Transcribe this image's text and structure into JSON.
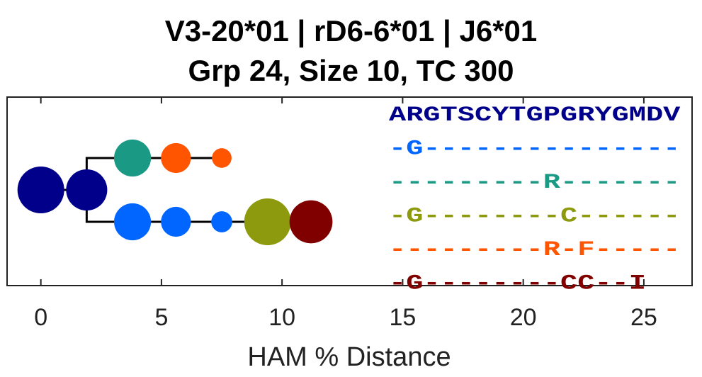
{
  "chart_data": {
    "type": "scatter",
    "title": "V3-20*01 | rD6-6*01 | J6*01",
    "subtitle": "Grp 24, Size 10, TC 300",
    "xlabel": "HAM % Distance",
    "xlim": [
      -1.4,
      27.0
    ],
    "xticks": [
      0,
      5,
      10,
      15,
      20,
      25
    ],
    "xtick_labels": [
      "0",
      "5",
      "10",
      "15",
      "20",
      "25"
    ],
    "grid": false,
    "nodes": [
      {
        "x": 0.0,
        "row": 0,
        "size": 1.0,
        "color": "#00008B"
      },
      {
        "x": 1.9,
        "row": 0,
        "size": 0.88,
        "color": "#00008B"
      },
      {
        "x": 3.8,
        "row": -1,
        "size": 0.79,
        "color": "#1A9985"
      },
      {
        "x": 5.6,
        "row": -1,
        "size": 0.64,
        "color": "#FF5500"
      },
      {
        "x": 7.5,
        "row": -1,
        "size": 0.42,
        "color": "#FF5500"
      },
      {
        "x": 3.8,
        "row": 1,
        "size": 0.79,
        "color": "#0066FF"
      },
      {
        "x": 5.6,
        "row": 1,
        "size": 0.64,
        "color": "#0066FF"
      },
      {
        "x": 7.5,
        "row": 1,
        "size": 0.45,
        "color": "#0066FF"
      },
      {
        "x": 9.4,
        "row": 1,
        "size": 1.0,
        "color": "#8E9A0D"
      },
      {
        "x": 11.2,
        "row": 1,
        "size": 0.92,
        "color": "#800000"
      }
    ],
    "edges": [
      {
        "from": 0,
        "to": 1
      },
      {
        "from": 1,
        "to": 2
      },
      {
        "from": 2,
        "to": 3
      },
      {
        "from": 3,
        "to": 4
      },
      {
        "from": 1,
        "to": 5
      },
      {
        "from": 5,
        "to": 6
      },
      {
        "from": 6,
        "to": 7
      },
      {
        "from": 7,
        "to": 8
      },
      {
        "from": 8,
        "to": 9
      }
    ],
    "sequences": [
      {
        "text": "ARGTSCYTGPGRYGMDV",
        "color": "#00008B"
      },
      {
        "text": "-G---------------",
        "color": "#0066FF"
      },
      {
        "text": "---------R-------",
        "color": "#1A9985"
      },
      {
        "text": "-G--------C------",
        "color": "#8E9A0D"
      },
      {
        "text": "---------R-F-----",
        "color": "#FF5500"
      },
      {
        "text": "-G--------CC--I",
        "color": "#800000"
      }
    ]
  }
}
